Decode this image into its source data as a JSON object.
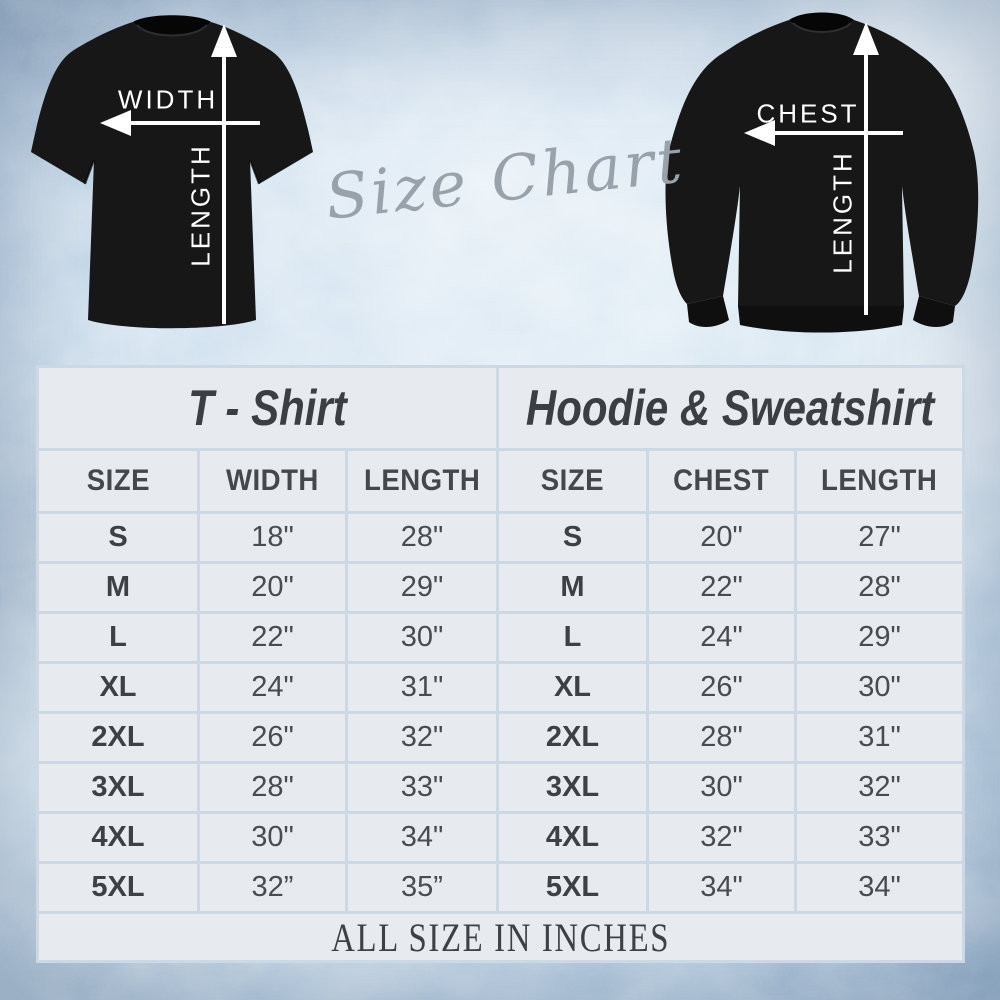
{
  "script_title": "Size Chart",
  "diagrams": {
    "tshirt": {
      "horizontal_label": "WIDTH",
      "vertical_label": "LENGTH"
    },
    "hoodie": {
      "horizontal_label": "CHEST",
      "vertical_label": "LENGTH"
    }
  },
  "chart_data": [
    {
      "type": "table",
      "title": "T - Shirt",
      "columns": [
        "SIZE",
        "WIDTH",
        "LENGTH"
      ],
      "rows": [
        [
          "S",
          "18\"",
          "28\""
        ],
        [
          "M",
          "20\"",
          "29\""
        ],
        [
          "L",
          "22\"",
          "30\""
        ],
        [
          "XL",
          "24\"",
          "31\""
        ],
        [
          "2XL",
          "26\"",
          "32\""
        ],
        [
          "3XL",
          "28\"",
          "33\""
        ],
        [
          "4XL",
          "30\"",
          "34\""
        ],
        [
          "5XL",
          "32”",
          "35”"
        ]
      ]
    },
    {
      "type": "table",
      "title": "Hoodie & Sweatshirt",
      "columns": [
        "SIZE",
        "CHEST",
        "LENGTH"
      ],
      "rows": [
        [
          "S",
          "20\"",
          "27\""
        ],
        [
          "M",
          "22\"",
          "28\""
        ],
        [
          "L",
          "24\"",
          "29\""
        ],
        [
          "XL",
          "26\"",
          "30\""
        ],
        [
          "2XL",
          "28\"",
          "31\""
        ],
        [
          "3XL",
          "30\"",
          "32\""
        ],
        [
          "4XL",
          "32\"",
          "33\""
        ],
        [
          "5XL",
          "34\"",
          "34\""
        ]
      ]
    }
  ],
  "table_footer": "ALL SIZE IN INCHES",
  "colors": {
    "cell_bg": "#e7ebef",
    "grid_line": "#ccd9e5",
    "text_dark": "#3e4144",
    "script_gray": "#99a2ab",
    "garment_black": "#171717",
    "arrow_white": "#ffffff"
  }
}
